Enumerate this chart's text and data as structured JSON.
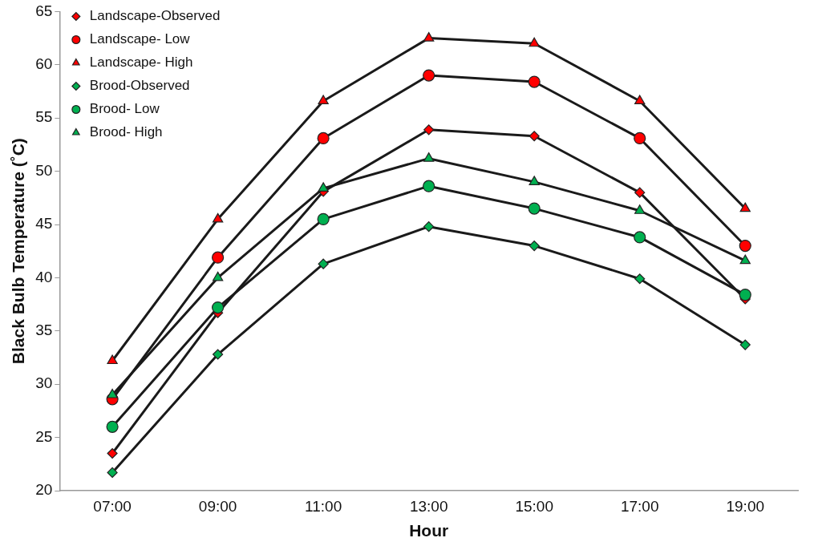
{
  "chart_data": {
    "type": "line",
    "xlabel": "Hour",
    "ylabel": "Black Bulb Temperature (˚C)",
    "categories": [
      "07:00",
      "09:00",
      "11:00",
      "13:00",
      "15:00",
      "17:00",
      "19:00"
    ],
    "ylim": [
      20,
      65
    ],
    "yticks": [
      20,
      25,
      30,
      35,
      40,
      45,
      50,
      55,
      60,
      65
    ],
    "grid": false,
    "legend": "top left",
    "line_style": "solid",
    "series": [
      {
        "name": "Landscape-Observed",
        "color": "#ff0000",
        "marker": "diamond",
        "values": [
          23.5,
          36.7,
          48.1,
          53.9,
          53.3,
          48.0,
          38.0
        ]
      },
      {
        "name": "Landscape- Low",
        "color": "#ff0000",
        "marker": "circle",
        "values": [
          28.6,
          41.9,
          53.1,
          59.0,
          58.4,
          53.1,
          43.0
        ]
      },
      {
        "name": "Landscape- High",
        "color": "#ff0000",
        "marker": "triangle",
        "values": [
          32.2,
          45.5,
          56.6,
          62.5,
          62.0,
          56.6,
          46.5
        ]
      },
      {
        "name": "Brood-Observed",
        "color": "#00b050",
        "marker": "diamond",
        "values": [
          21.7,
          32.8,
          41.3,
          44.8,
          43.0,
          39.9,
          33.7
        ]
      },
      {
        "name": "Brood- Low",
        "color": "#00b050",
        "marker": "circle",
        "values": [
          26.0,
          37.2,
          45.5,
          48.6,
          46.5,
          43.8,
          38.4
        ]
      },
      {
        "name": "Brood- High",
        "color": "#00b050",
        "marker": "triangle",
        "values": [
          29.0,
          40.0,
          48.4,
          51.2,
          49.0,
          46.3,
          41.6
        ]
      }
    ]
  }
}
